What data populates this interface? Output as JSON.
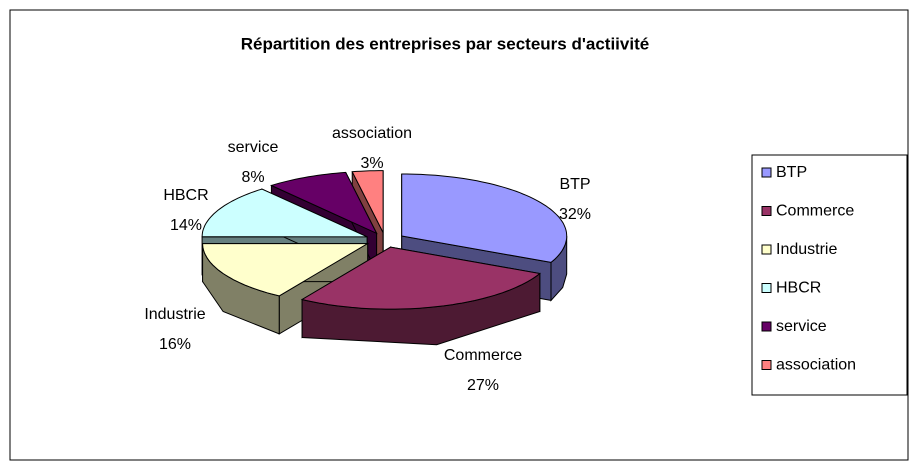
{
  "chart_data": {
    "type": "pie3d",
    "title": "Répartition des entreprises par secteurs d'actiivité",
    "categories": [
      "BTP",
      "Commerce",
      "Industrie",
      "HBCR",
      "service",
      "association"
    ],
    "values": [
      32,
      27,
      16,
      14,
      8,
      3
    ],
    "value_labels": [
      "32%",
      "27%",
      "16%",
      "14%",
      "8%",
      "3%"
    ],
    "colors": [
      "#9999FF",
      "#993366",
      "#FFFFCC",
      "#CCFFFF",
      "#660066",
      "#FF8080"
    ],
    "legend": "right"
  }
}
